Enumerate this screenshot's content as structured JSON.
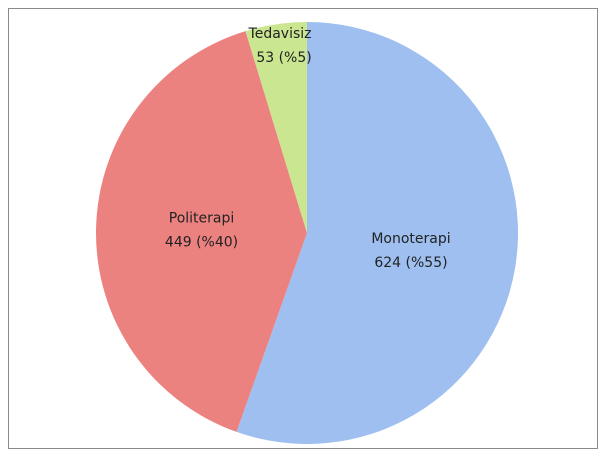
{
  "chart_data": {
    "type": "pie",
    "categories": [
      "Monoterapi",
      "Politerapi",
      "Tedavisiz"
    ],
    "values": [
      624,
      449,
      53
    ],
    "value_labels": [
      "624 (%55)",
      "449 (%40)",
      "53 (%5)"
    ],
    "colors": [
      "#9ebff0",
      "#ec8280",
      "#cbe690"
    ]
  }
}
